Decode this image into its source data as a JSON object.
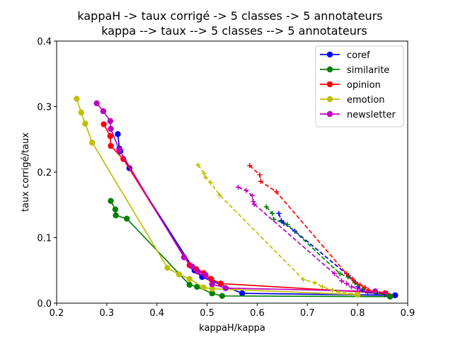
{
  "chart_data": {
    "type": "line",
    "title_line1": "kappaH -> taux corrigé -> 5 classes -> 5 annotateurs",
    "title_line2": "kappa --> taux --> 5 classes --> 5 annotateurs",
    "xlabel": "kappaH/kappa",
    "ylabel": "taux corrigé/taux",
    "xlim": [
      0.2,
      0.9
    ],
    "ylim": [
      0.0,
      0.4
    ],
    "xticks": [
      "0.2",
      "0.3",
      "0.4",
      "0.5",
      "0.6",
      "0.7",
      "0.8",
      "0.9"
    ],
    "yticks": [
      "0.0",
      "0.1",
      "0.2",
      "0.3",
      "0.4"
    ],
    "grid": false,
    "legend_position": "top-right",
    "series": [
      {
        "name": "coref",
        "color": "#0000ff",
        "style": "solid",
        "marker": "circle",
        "points": [
          [
            0.322,
            0.258
          ],
          [
            0.325,
            0.236
          ],
          [
            0.327,
            0.232
          ],
          [
            0.345,
            0.206
          ],
          [
            0.475,
            0.05
          ],
          [
            0.49,
            0.04
          ],
          [
            0.57,
            0.015
          ],
          [
            0.875,
            0.012
          ]
        ]
      },
      {
        "name": "similarite",
        "color": "#008000",
        "style": "solid",
        "marker": "circle",
        "points": [
          [
            0.308,
            0.156
          ],
          [
            0.317,
            0.143
          ],
          [
            0.318,
            0.134
          ],
          [
            0.34,
            0.129
          ],
          [
            0.465,
            0.028
          ],
          [
            0.48,
            0.025
          ],
          [
            0.51,
            0.015
          ],
          [
            0.53,
            0.011
          ],
          [
            0.865,
            0.01
          ]
        ]
      },
      {
        "name": "opinion",
        "color": "#ff0000",
        "style": "solid",
        "marker": "circle",
        "points": [
          [
            0.294,
            0.273
          ],
          [
            0.307,
            0.255
          ],
          [
            0.308,
            0.24
          ],
          [
            0.333,
            0.22
          ],
          [
            0.465,
            0.058
          ],
          [
            0.478,
            0.052
          ],
          [
            0.493,
            0.046
          ],
          [
            0.508,
            0.037
          ],
          [
            0.527,
            0.03
          ],
          [
            0.855,
            0.015
          ]
        ]
      },
      {
        "name": "emotion",
        "color": "#bfbf00",
        "style": "solid",
        "marker": "circle",
        "points": [
          [
            0.24,
            0.312
          ],
          [
            0.249,
            0.291
          ],
          [
            0.257,
            0.274
          ],
          [
            0.271,
            0.245
          ],
          [
            0.421,
            0.054
          ],
          [
            0.444,
            0.044
          ],
          [
            0.465,
            0.037
          ],
          [
            0.493,
            0.024
          ],
          [
            0.51,
            0.022
          ],
          [
            0.8,
            0.013
          ]
        ]
      },
      {
        "name": "newsletter",
        "color": "#bf00bf",
        "style": "solid",
        "marker": "circle",
        "points": [
          [
            0.28,
            0.305
          ],
          [
            0.293,
            0.293
          ],
          [
            0.307,
            0.278
          ],
          [
            0.308,
            0.266
          ],
          [
            0.325,
            0.234
          ],
          [
            0.454,
            0.07
          ],
          [
            0.47,
            0.056
          ],
          [
            0.482,
            0.048
          ],
          [
            0.497,
            0.043
          ],
          [
            0.51,
            0.029
          ],
          [
            0.537,
            0.023
          ],
          [
            0.835,
            0.018
          ]
        ]
      },
      {
        "name": "",
        "color": "#0000ff",
        "style": "dashed",
        "marker": "plus",
        "points": [
          [
            0.643,
            0.137
          ],
          [
            0.648,
            0.126
          ],
          [
            0.653,
            0.122
          ],
          [
            0.675,
            0.11
          ],
          [
            0.782,
            0.042
          ],
          [
            0.795,
            0.032
          ],
          [
            0.8,
            0.025
          ],
          [
            0.81,
            0.02
          ],
          [
            0.82,
            0.016
          ],
          [
            0.855,
            0.013
          ]
        ]
      },
      {
        "name": "",
        "color": "#008000",
        "style": "dashed",
        "marker": "plus",
        "points": [
          [
            0.618,
            0.147
          ],
          [
            0.63,
            0.137
          ],
          [
            0.633,
            0.128
          ],
          [
            0.66,
            0.12
          ],
          [
            0.765,
            0.045
          ],
          [
            0.781,
            0.04
          ],
          [
            0.795,
            0.031
          ],
          [
            0.812,
            0.022
          ],
          [
            0.82,
            0.017
          ],
          [
            0.86,
            0.012
          ]
        ]
      },
      {
        "name": "",
        "color": "#ff0000",
        "style": "dashed",
        "marker": "plus",
        "points": [
          [
            0.585,
            0.21
          ],
          [
            0.605,
            0.196
          ],
          [
            0.607,
            0.186
          ],
          [
            0.638,
            0.17
          ],
          [
            0.778,
            0.045
          ],
          [
            0.79,
            0.037
          ],
          [
            0.796,
            0.032
          ],
          [
            0.805,
            0.028
          ],
          [
            0.815,
            0.024
          ],
          [
            0.822,
            0.02
          ],
          [
            0.86,
            0.015
          ]
        ]
      },
      {
        "name": "",
        "color": "#bfbf00",
        "style": "dashed",
        "marker": "plus",
        "points": [
          [
            0.482,
            0.211
          ],
          [
            0.494,
            0.198
          ],
          [
            0.497,
            0.192
          ],
          [
            0.507,
            0.184
          ],
          [
            0.525,
            0.165
          ],
          [
            0.692,
            0.036
          ],
          [
            0.715,
            0.031
          ],
          [
            0.73,
            0.025
          ],
          [
            0.75,
            0.02
          ],
          [
            0.762,
            0.017
          ],
          [
            0.8,
            0.014
          ]
        ]
      },
      {
        "name": "",
        "color": "#bf00bf",
        "style": "dashed",
        "marker": "plus",
        "points": [
          [
            0.562,
            0.177
          ],
          [
            0.578,
            0.172
          ],
          [
            0.59,
            0.164
          ],
          [
            0.592,
            0.155
          ],
          [
            0.594,
            0.151
          ],
          [
            0.754,
            0.045
          ],
          [
            0.768,
            0.034
          ],
          [
            0.778,
            0.03
          ],
          [
            0.788,
            0.025
          ],
          [
            0.8,
            0.022
          ],
          [
            0.82,
            0.017
          ],
          [
            0.855,
            0.016
          ]
        ]
      }
    ]
  }
}
